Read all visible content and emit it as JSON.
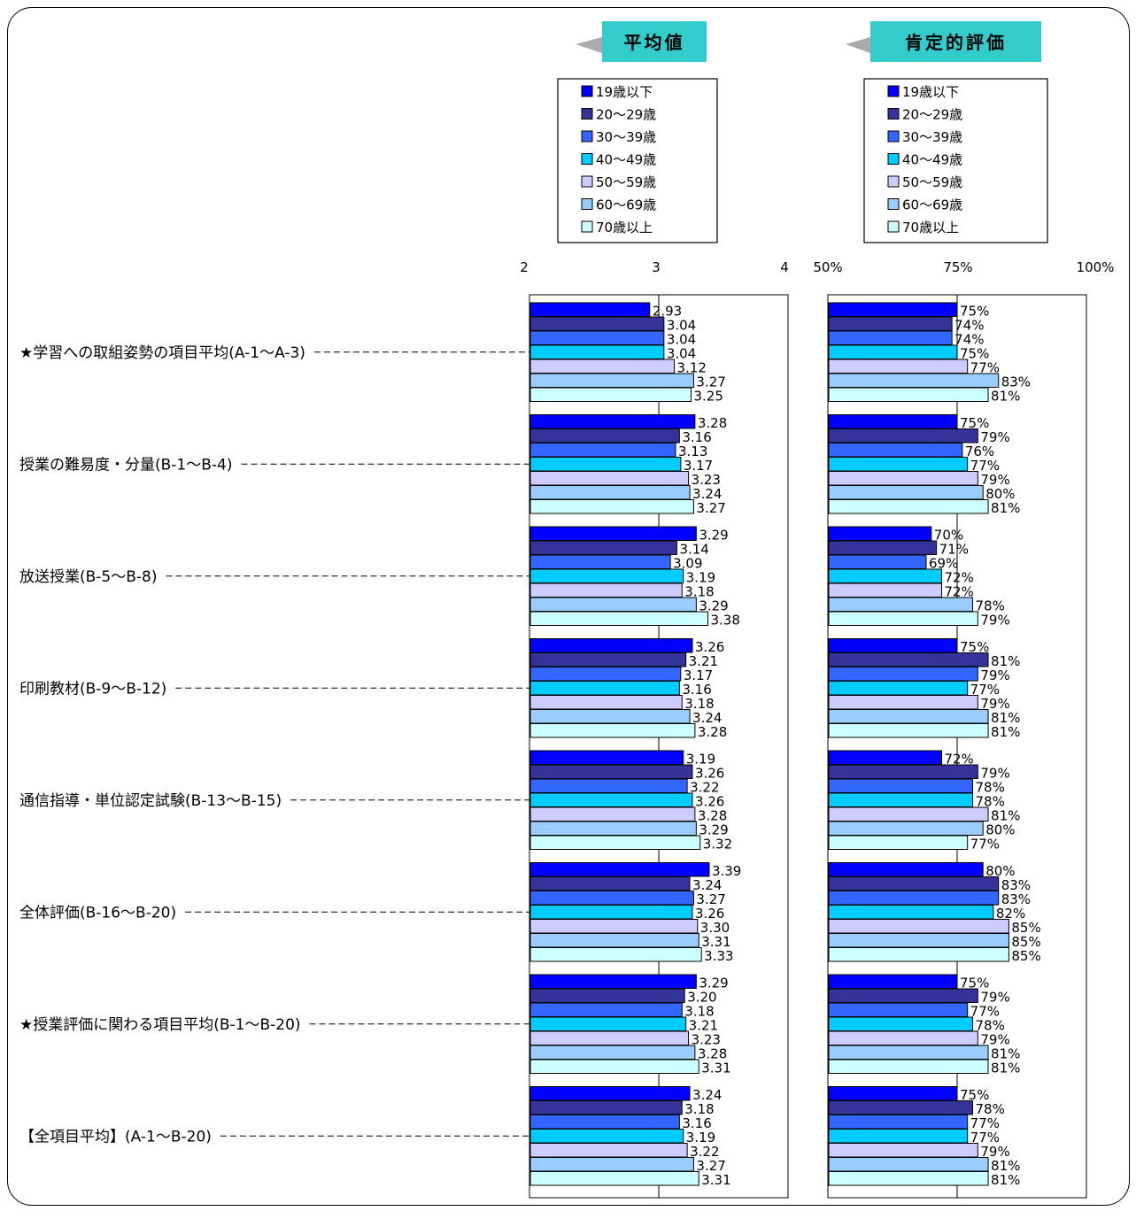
{
  "chart_data": [
    {
      "type": "bar",
      "title": "平均値",
      "xlim": [
        2,
        4
      ],
      "tick_labels": [
        "2",
        "3",
        "4"
      ],
      "categories": [
        "★学習への取組姿勢の項目平均(A-1〜A-3)",
        "授業の難易度・分量(B-1〜B-4)",
        "放送授業(B-5〜B-8)",
        "印刷教材(B-9〜B-12)",
        "通信指導・単位認定試験(B-13〜B-15)",
        "全体評価(B-16〜B-20)",
        "★授業評価に関わる項目平均(B-1〜B-20)",
        "【全項目平均】(A-1〜B-20)"
      ],
      "series": [
        {
          "name": "19歳以下",
          "color": "#0000ff",
          "values": [
            2.93,
            3.28,
            3.29,
            3.26,
            3.19,
            3.39,
            3.29,
            3.24
          ],
          "labels": [
            "2.93",
            "3.28",
            "3.29",
            "3.26",
            "3.19",
            "3.39",
            "3.29",
            "3.24"
          ]
        },
        {
          "name": "20〜29歳",
          "color": "#333399",
          "values": [
            3.04,
            3.16,
            3.14,
            3.21,
            3.26,
            3.24,
            3.2,
            3.18
          ],
          "labels": [
            "3.04",
            "3.16",
            "3.14",
            "3.21",
            "3.26",
            "3.24",
            "3.20",
            "3.18"
          ]
        },
        {
          "name": "30〜39歳",
          "color": "#3366ff",
          "values": [
            3.04,
            3.13,
            3.09,
            3.17,
            3.22,
            3.27,
            3.18,
            3.16
          ],
          "labels": [
            "3.04",
            "3.13",
            "3.09",
            "3.17",
            "3.22",
            "3.27",
            "3.18",
            "3.16"
          ]
        },
        {
          "name": "40〜49歳",
          "color": "#00ccff",
          "values": [
            3.04,
            3.17,
            3.19,
            3.16,
            3.26,
            3.26,
            3.21,
            3.19
          ],
          "labels": [
            "3.04",
            "3.17",
            "3.19",
            "3.16",
            "3.26",
            "3.26",
            "3.21",
            "3.19"
          ]
        },
        {
          "name": "50〜59歳",
          "color": "#ccccff",
          "values": [
            3.12,
            3.23,
            3.18,
            3.18,
            3.28,
            3.3,
            3.23,
            3.22
          ],
          "labels": [
            "3.12",
            "3.23",
            "3.18",
            "3.18",
            "3.28",
            "3.30",
            "3.23",
            "3.22"
          ]
        },
        {
          "name": "60〜69歳",
          "color": "#99ccff",
          "values": [
            3.27,
            3.24,
            3.29,
            3.24,
            3.29,
            3.31,
            3.28,
            3.27
          ],
          "labels": [
            "3.27",
            "3.24",
            "3.29",
            "3.24",
            "3.29",
            "3.31",
            "3.28",
            "3.27"
          ]
        },
        {
          "name": "70歳以上",
          "color": "#ccffff",
          "values": [
            3.25,
            3.27,
            3.38,
            3.28,
            3.32,
            3.33,
            3.31,
            3.31
          ],
          "labels": [
            "3.25",
            "3.27",
            "3.38",
            "3.28",
            "3.32",
            "3.33",
            "3.31",
            "3.31"
          ]
        }
      ]
    },
    {
      "type": "bar",
      "title": "肯定的評価",
      "xlim": [
        50,
        100
      ],
      "tick_labels": [
        "50%",
        "75%",
        "100%"
      ],
      "categories": [
        "★学習への取組姿勢の項目平均(A-1〜A-3)",
        "授業の難易度・分量(B-1〜B-4)",
        "放送授業(B-5〜B-8)",
        "印刷教材(B-9〜B-12)",
        "通信指導・単位認定試験(B-13〜B-15)",
        "全体評価(B-16〜B-20)",
        "★授業評価に関わる項目平均(B-1〜B-20)",
        "【全項目平均】(A-1〜B-20)"
      ],
      "series": [
        {
          "name": "19歳以下",
          "color": "#0000ff",
          "values": [
            75,
            75,
            70,
            75,
            72,
            80,
            75,
            75
          ],
          "labels": [
            "75%",
            "75%",
            "70%",
            "75%",
            "72%",
            "80%",
            "75%",
            "75%"
          ]
        },
        {
          "name": "20〜29歳",
          "color": "#333399",
          "values": [
            74,
            79,
            71,
            81,
            79,
            83,
            79,
            78
          ],
          "labels": [
            "74%",
            "79%",
            "71%",
            "81%",
            "79%",
            "83%",
            "79%",
            "78%"
          ]
        },
        {
          "name": "30〜39歳",
          "color": "#3366ff",
          "values": [
            74,
            76,
            69,
            79,
            78,
            83,
            77,
            77
          ],
          "labels": [
            "74%",
            "76%",
            "69%",
            "79%",
            "78%",
            "83%",
            "77%",
            "77%"
          ]
        },
        {
          "name": "40〜49歳",
          "color": "#00ccff",
          "values": [
            75,
            77,
            72,
            77,
            78,
            82,
            78,
            77
          ],
          "labels": [
            "75%",
            "77%",
            "72%",
            "77%",
            "78%",
            "82%",
            "78%",
            "77%"
          ]
        },
        {
          "name": "50〜59歳",
          "color": "#ccccff",
          "values": [
            77,
            79,
            72,
            79,
            81,
            85,
            79,
            79
          ],
          "labels": [
            "77%",
            "79%",
            "72%",
            "79%",
            "81%",
            "85%",
            "79%",
            "79%"
          ]
        },
        {
          "name": "60〜69歳",
          "color": "#99ccff",
          "values": [
            83,
            80,
            78,
            81,
            80,
            85,
            81,
            81
          ],
          "labels": [
            "83%",
            "80%",
            "78%",
            "81%",
            "80%",
            "85%",
            "81%",
            "81%"
          ]
        },
        {
          "name": "70歳以上",
          "color": "#ccffff",
          "values": [
            81,
            81,
            79,
            81,
            77,
            85,
            81,
            81
          ],
          "labels": [
            "81%",
            "81%",
            "79%",
            "81%",
            "77%",
            "85%",
            "81%",
            "81%"
          ]
        }
      ]
    }
  ]
}
